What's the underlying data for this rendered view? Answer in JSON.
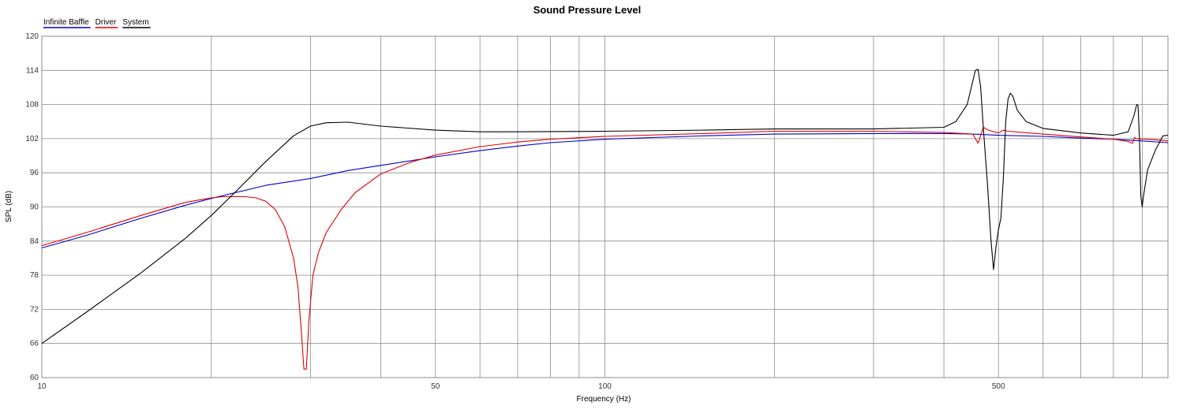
{
  "chart_data": {
    "type": "line",
    "title": "Sound Pressure Level",
    "xlabel": "Frequency (Hz)",
    "ylabel": "SPL (dB)",
    "x_scale": "log",
    "xlim": [
      10,
      1000
    ],
    "ylim": [
      60,
      120
    ],
    "yticks": [
      60,
      66,
      72,
      78,
      84,
      90,
      96,
      102,
      108,
      114,
      120
    ],
    "xtick_labels": [
      {
        "value": 10,
        "label": "10"
      },
      {
        "value": 50,
        "label": "50"
      },
      {
        "value": 100,
        "label": "100"
      },
      {
        "value": 500,
        "label": "500"
      }
    ],
    "x_gridlines": [
      10,
      20,
      30,
      40,
      50,
      60,
      70,
      80,
      90,
      100,
      200,
      300,
      400,
      500,
      600,
      700,
      800,
      900
    ],
    "grid": true,
    "legend_position": "top-left",
    "series": [
      {
        "name": "Infinite Baffle",
        "color": "#0000c8",
        "points": [
          [
            10,
            82.8
          ],
          [
            12,
            85
          ],
          [
            15,
            88
          ],
          [
            18,
            90.3
          ],
          [
            20,
            91.5
          ],
          [
            25,
            93.8
          ],
          [
            30,
            95
          ],
          [
            35,
            96.4
          ],
          [
            40,
            97.3
          ],
          [
            50,
            98.8
          ],
          [
            60,
            99.9
          ],
          [
            70,
            100.7
          ],
          [
            80,
            101.3
          ],
          [
            100,
            101.9
          ],
          [
            150,
            102.5
          ],
          [
            200,
            102.8
          ],
          [
            300,
            102.9
          ],
          [
            400,
            102.9
          ],
          [
            450,
            102.8
          ],
          [
            500,
            102.6
          ],
          [
            600,
            102.4
          ],
          [
            700,
            102.1
          ],
          [
            800,
            101.9
          ],
          [
            900,
            101.6
          ],
          [
            1000,
            101.3
          ]
        ]
      },
      {
        "name": "Driver",
        "color": "#e00000",
        "points": [
          [
            10,
            83.2
          ],
          [
            12,
            85.5
          ],
          [
            15,
            88.5
          ],
          [
            18,
            90.8
          ],
          [
            20,
            91.6
          ],
          [
            21,
            91.8
          ],
          [
            22,
            91.8
          ],
          [
            23,
            91.8
          ],
          [
            24,
            91.6
          ],
          [
            25,
            91
          ],
          [
            26,
            89.5
          ],
          [
            27,
            86.5
          ],
          [
            28,
            81
          ],
          [
            28.5,
            76
          ],
          [
            28.9,
            68
          ],
          [
            29.2,
            61.5
          ],
          [
            29.5,
            61.5
          ],
          [
            29.8,
            70
          ],
          [
            30.3,
            78
          ],
          [
            31,
            82
          ],
          [
            32,
            85.5
          ],
          [
            34,
            89.5
          ],
          [
            36,
            92.5
          ],
          [
            40,
            95.8
          ],
          [
            45,
            97.8
          ],
          [
            50,
            99.1
          ],
          [
            60,
            100.6
          ],
          [
            70,
            101.4
          ],
          [
            80,
            101.9
          ],
          [
            100,
            102.4
          ],
          [
            150,
            102.9
          ],
          [
            200,
            103.3
          ],
          [
            300,
            103.3
          ],
          [
            400,
            103.1
          ],
          [
            450,
            102.8
          ],
          [
            460,
            101.2
          ],
          [
            470,
            104
          ],
          [
            480,
            103.5
          ],
          [
            500,
            103
          ],
          [
            510,
            103.5
          ],
          [
            520,
            103.3
          ],
          [
            600,
            102.8
          ],
          [
            700,
            102.3
          ],
          [
            800,
            101.9
          ],
          [
            850,
            101.5
          ],
          [
            865,
            101.2
          ],
          [
            872,
            102.2
          ],
          [
            880,
            102
          ],
          [
            950,
            101.8
          ],
          [
            1000,
            101.6
          ]
        ]
      },
      {
        "name": "System",
        "color": "#000000",
        "points": [
          [
            10,
            66
          ],
          [
            12,
            71.5
          ],
          [
            15,
            78.4
          ],
          [
            18,
            84.5
          ],
          [
            20,
            88.5
          ],
          [
            22,
            92.5
          ],
          [
            25,
            98
          ],
          [
            28,
            102.5
          ],
          [
            30,
            104.2
          ],
          [
            32,
            104.8
          ],
          [
            35,
            104.9
          ],
          [
            40,
            104.2
          ],
          [
            50,
            103.5
          ],
          [
            60,
            103.2
          ],
          [
            70,
            103.2
          ],
          [
            100,
            103.3
          ],
          [
            150,
            103.5
          ],
          [
            200,
            103.7
          ],
          [
            300,
            103.7
          ],
          [
            400,
            104
          ],
          [
            420,
            105
          ],
          [
            440,
            108
          ],
          [
            455,
            114
          ],
          [
            460,
            114.2
          ],
          [
            465,
            111
          ],
          [
            470,
            104
          ],
          [
            478,
            94
          ],
          [
            485,
            84
          ],
          [
            490,
            79
          ],
          [
            495,
            83
          ],
          [
            500,
            86
          ],
          [
            505,
            88
          ],
          [
            510,
            95
          ],
          [
            515,
            105
          ],
          [
            520,
            109
          ],
          [
            525,
            110
          ],
          [
            530,
            109.5
          ],
          [
            540,
            107
          ],
          [
            560,
            105
          ],
          [
            600,
            103.8
          ],
          [
            700,
            103
          ],
          [
            800,
            102.6
          ],
          [
            850,
            103.2
          ],
          [
            870,
            106
          ],
          [
            880,
            108
          ],
          [
            885,
            107.8
          ],
          [
            890,
            102
          ],
          [
            895,
            92
          ],
          [
            900,
            90
          ],
          [
            905,
            92
          ],
          [
            920,
            96.5
          ],
          [
            950,
            100
          ],
          [
            980,
            102.5
          ],
          [
            1000,
            102.6
          ]
        ]
      }
    ]
  }
}
